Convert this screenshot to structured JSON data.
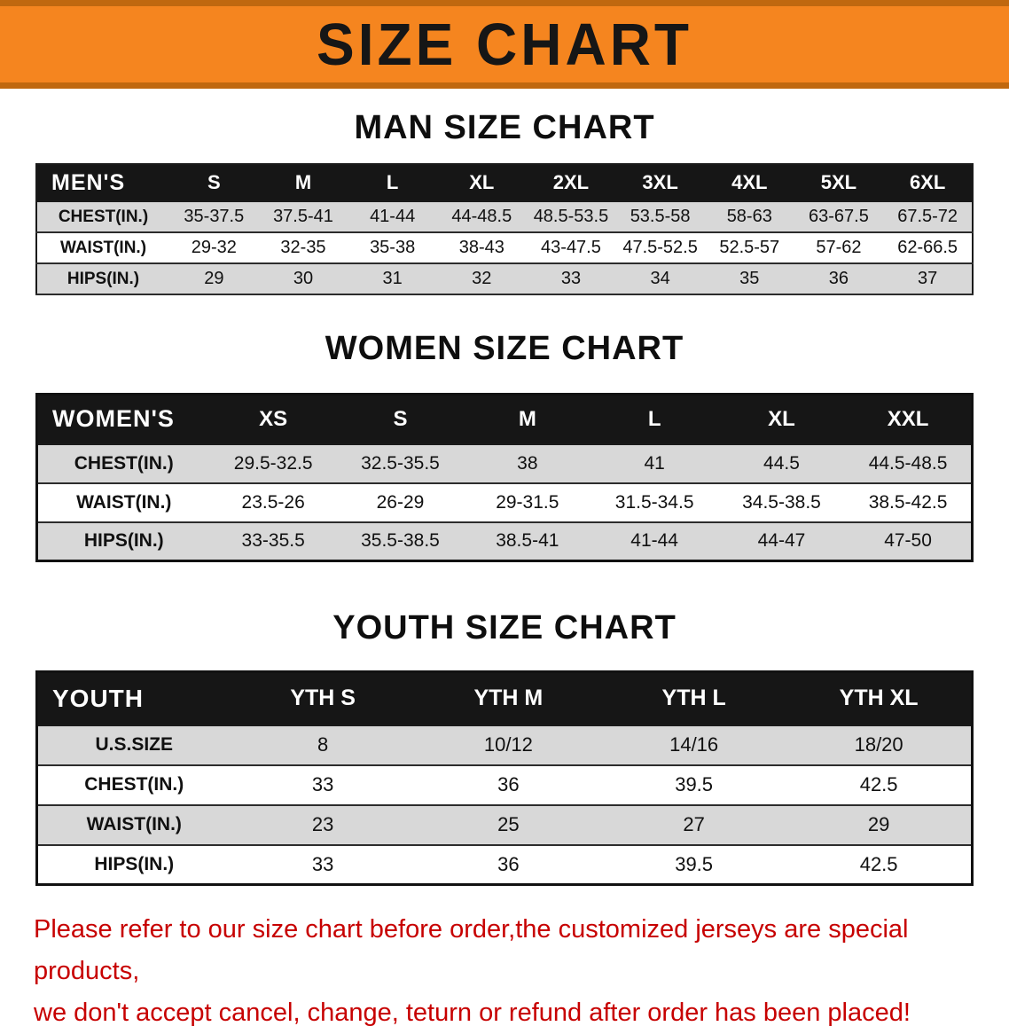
{
  "banner": {
    "title": "SIZE CHART",
    "bg_color": "#F5851F",
    "border_color": "#C0680F",
    "text_color": "#161616"
  },
  "sections": [
    {
      "heading": "MAN SIZE CHART",
      "table": {
        "header": [
          "MEN'S",
          "S",
          "M",
          "L",
          "XL",
          "2XL",
          "3XL",
          "4XL",
          "5XL",
          "6XL"
        ],
        "rows": [
          {
            "label": "CHEST(IN.)",
            "values": [
              "35-37.5",
              "37.5-41",
              "41-44",
              "44-48.5",
              "48.5-53.5",
              "53.5-58",
              "58-63",
              "63-67.5",
              "67.5-72"
            ]
          },
          {
            "label": "WAIST(IN.)",
            "values": [
              "29-32",
              "32-35",
              "35-38",
              "38-43",
              "43-47.5",
              "47.5-52.5",
              "52.5-57",
              "57-62",
              "62-66.5"
            ]
          },
          {
            "label": "HIPS(IN.)",
            "values": [
              "29",
              "30",
              "31",
              "32",
              "33",
              "34",
              "35",
              "36",
              "37"
            ]
          }
        ]
      }
    },
    {
      "heading": "WOMEN SIZE CHART",
      "table": {
        "header": [
          "WOMEN'S",
          "XS",
          "S",
          "M",
          "L",
          "XL",
          "XXL"
        ],
        "rows": [
          {
            "label": "CHEST(IN.)",
            "values": [
              "29.5-32.5",
              "32.5-35.5",
              "38",
              "41",
              "44.5",
              "44.5-48.5"
            ]
          },
          {
            "label": "WAIST(IN.)",
            "values": [
              "23.5-26",
              "26-29",
              "29-31.5",
              "31.5-34.5",
              "34.5-38.5",
              "38.5-42.5"
            ]
          },
          {
            "label": "HIPS(IN.)",
            "values": [
              "33-35.5",
              "35.5-38.5",
              "38.5-41",
              "41-44",
              "44-47",
              "47-50"
            ]
          }
        ]
      }
    },
    {
      "heading": "YOUTH SIZE CHART",
      "table": {
        "header": [
          "YOUTH",
          "YTH S",
          "YTH M",
          "YTH L",
          "YTH XL"
        ],
        "rows": [
          {
            "label": "U.S.SIZE",
            "values": [
              "8",
              "10/12",
              "14/16",
              "18/20"
            ]
          },
          {
            "label": "CHEST(IN.)",
            "values": [
              "33",
              "36",
              "39.5",
              "42.5"
            ]
          },
          {
            "label": "WAIST(IN.)",
            "values": [
              "23",
              "25",
              "27",
              "29"
            ]
          },
          {
            "label": "HIPS(IN.)",
            "values": [
              "33",
              "36",
              "39.5",
              "42.5"
            ]
          }
        ]
      }
    }
  ],
  "disclaimer": {
    "line1": "Please refer to our size chart before order,the customized jerseys are special products,",
    "line2": "we don't accept cancel, change, teturn or refund after order has been placed!",
    "color": "#c70000"
  }
}
